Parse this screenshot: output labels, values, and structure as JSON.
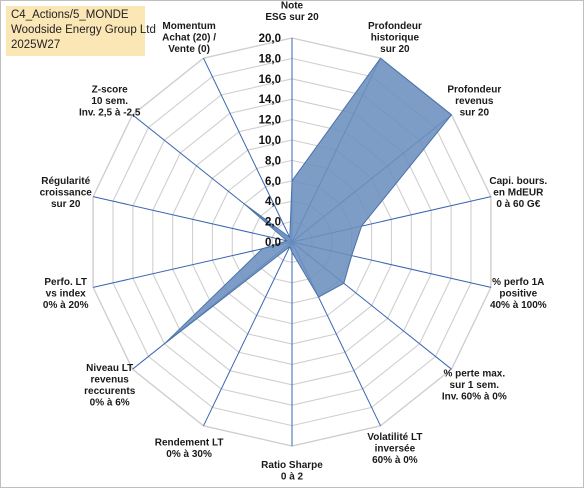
{
  "info": {
    "line1": "C4_Actions/5_MONDE",
    "line2": "Woodside Energy Group Ltd",
    "line3": "2025W27"
  },
  "colors": {
    "fill": "#6b8fbe",
    "stroke": "#4a72a8",
    "spoke": "#3a66b0",
    "grid": "#cfcfcf",
    "info_bg": "#fbe6b6"
  },
  "chart_data": {
    "type": "radar",
    "range": [
      0,
      20
    ],
    "tick_step": 2,
    "ticks": [
      "0,0",
      "2,0",
      "4,0",
      "6,0",
      "8,0",
      "10,0",
      "12,0",
      "14,0",
      "16,0",
      "18,0",
      "20,0"
    ],
    "axes": [
      [
        "Note",
        "ESG sur 20"
      ],
      [
        "Profondeur",
        "historique",
        "sur 20"
      ],
      [
        "Profondeur",
        "revenus",
        "sur 20"
      ],
      [
        "Capi. bours.",
        "en MdEUR",
        "0 à 60 G€"
      ],
      [
        "% perfo 1A",
        "positive",
        "40% à 100%"
      ],
      [
        "% perte max.",
        "sur 1 sem.",
        "Inv. 60% à 0%"
      ],
      [
        "Volatilité LT",
        "inversée",
        "60% à 0%"
      ],
      [
        "Ratio Sharpe",
        "0 à 2"
      ],
      [
        "Rendement LT",
        "0% à 30%"
      ],
      [
        "Niveau LT",
        "revenus",
        "reccurents",
        "0% à 6%"
      ],
      [
        "Perfo. LT",
        "vs index",
        "0% à 20%"
      ],
      [
        "Régularité",
        "croissance",
        "sur 20"
      ],
      [
        "Z-score",
        "10 sem.",
        "Inv. 2,5 à -2,5"
      ],
      [
        "Momentum",
        "Achat (20) /",
        "Vente (0)"
      ]
    ],
    "series": [
      {
        "values": [
          6.0,
          20.0,
          20.0,
          7.0,
          6.0,
          6.5,
          6.0,
          1.0,
          0.5,
          16.0,
          3.0,
          0.5,
          6.0,
          0.5
        ]
      }
    ]
  }
}
